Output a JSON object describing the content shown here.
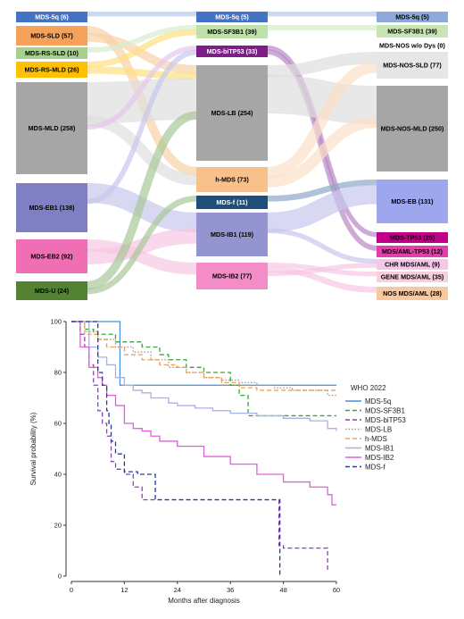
{
  "chart_data": [
    {
      "type": "sankey",
      "title": "",
      "columns": [
        {
          "nodes": [
            {
              "id": "c0n0",
              "label": "MDS-5q (6)",
              "value": 6,
              "color": "#4472c4",
              "text_color": "#ffffff"
            },
            {
              "id": "c0n1",
              "label": "MDS-SLD (57)",
              "value": 57,
              "color": "#f4a25a",
              "text_color": "#000000"
            },
            {
              "id": "c0n2",
              "label": "MDS-RS-SLD (10)",
              "value": 10,
              "color": "#a8d08d",
              "text_color": "#000000"
            },
            {
              "id": "c0n3",
              "label": "MDS-RS-MLD (26)",
              "value": 26,
              "color": "#ffc000",
              "text_color": "#000000"
            },
            {
              "id": "c0n4",
              "label": "MDS-MLD (258)",
              "value": 258,
              "color": "#a6a6a6",
              "text_color": "#000000"
            },
            {
              "id": "c0n5",
              "label": "MDS-EB1 (138)",
              "value": 138,
              "color": "#7f7fc4",
              "text_color": "#000000"
            },
            {
              "id": "c0n6",
              "label": "MDS-EB2 (92)",
              "value": 92,
              "color": "#f06eb4",
              "text_color": "#000000"
            },
            {
              "id": "c0n7",
              "label": "MDS-U (24)",
              "value": 24,
              "color": "#548235",
              "text_color": "#000000"
            }
          ]
        },
        {
          "nodes": [
            {
              "id": "c1n0",
              "label": "MDS-5q (5)",
              "value": 5,
              "color": "#4472c4",
              "text_color": "#ffffff"
            },
            {
              "id": "c1n1",
              "label": "MDS-SF3B1 (39)",
              "value": 39,
              "color": "#bfe0a8",
              "text_color": "#000000"
            },
            {
              "id": "c1n2",
              "label": "MDS-biTP53 (33)",
              "value": 33,
              "color": "#7b1e86",
              "text_color": "#ffffff"
            },
            {
              "id": "c1n3",
              "label": "MDS-LB (254)",
              "value": 254,
              "color": "#a6a6a6",
              "text_color": "#000000"
            },
            {
              "id": "c1n4",
              "label": "h-MDS (73)",
              "value": 73,
              "color": "#f8c08a",
              "text_color": "#000000"
            },
            {
              "id": "c1n5",
              "label": "MDS-f (11)",
              "value": 11,
              "color": "#1f4e79",
              "text_color": "#ffffff"
            },
            {
              "id": "c1n6",
              "label": "MDS-IB1 (119)",
              "value": 119,
              "color": "#9494d0",
              "text_color": "#000000"
            },
            {
              "id": "c1n7",
              "label": "MDS-IB2 (77)",
              "value": 77,
              "color": "#f48cc8",
              "text_color": "#000000"
            }
          ]
        },
        {
          "nodes": [
            {
              "id": "c2n0",
              "label": "MDS-5q (5)",
              "value": 5,
              "color": "#8eaadb",
              "text_color": "#000000"
            },
            {
              "id": "c2n1",
              "label": "MDS-SF3B1 (39)",
              "value": 39,
              "color": "#c8e6b4",
              "text_color": "#000000"
            },
            {
              "id": "c2n2",
              "label": "MDS-NOS w/o Dys (0)",
              "value": 0,
              "color": "#ffffff",
              "text_color": "#000000"
            },
            {
              "id": "c2n3",
              "label": "MDS-NOS-SLD (77)",
              "value": 77,
              "color": "#e6e6e6",
              "text_color": "#000000"
            },
            {
              "id": "c2n4",
              "label": "MDS-NOS-MLD (250)",
              "value": 250,
              "color": "#a6a6a6",
              "text_color": "#000000"
            },
            {
              "id": "c2n5",
              "label": "MDS-EB (131)",
              "value": 131,
              "color": "#9ea6ee",
              "text_color": "#000000"
            },
            {
              "id": "c2n6",
              "label": "MDS-TP53 (25)",
              "value": 25,
              "color": "#c00088",
              "text_color": "#000000"
            },
            {
              "id": "c2n7",
              "label": "MDS/AML-TP53 (12)",
              "value": 12,
              "color": "#e040a8",
              "text_color": "#000000"
            },
            {
              "id": "c2n8",
              "label": "CHR MDS/AML (9)",
              "value": 9,
              "color": "#f4c8e8",
              "text_color": "#000000"
            },
            {
              "id": "c2n9",
              "label": "GENE MDS/AML (35)",
              "value": 35,
              "color": "#f8d0dc",
              "text_color": "#000000"
            },
            {
              "id": "c2n10",
              "label": "NOS MDS/AML (28)",
              "value": 28,
              "color": "#f8c8a0",
              "text_color": "#000000"
            }
          ]
        }
      ],
      "links": [
        [
          "c0n0",
          "c1n0",
          "#b8c8f0"
        ],
        [
          "c0n1",
          "c1n4",
          "#f9d2a8"
        ],
        [
          "c0n1",
          "c1n3",
          "#f9d2a8"
        ],
        [
          "c0n2",
          "c1n1",
          "#d6eccc"
        ],
        [
          "c0n3",
          "c1n1",
          "#ffe080"
        ],
        [
          "c0n3",
          "c1n3",
          "#ffe080"
        ],
        [
          "c0n4",
          "c1n3",
          "#dedede"
        ],
        [
          "c0n4",
          "c1n4",
          "#dedede"
        ],
        [
          "c0n4",
          "c1n2",
          "#e6c8ee"
        ],
        [
          "c0n5",
          "c1n6",
          "#c8c8ec"
        ],
        [
          "c0n5",
          "c1n2",
          "#c8c8ec"
        ],
        [
          "c0n6",
          "c1n7",
          "#f8c8e4"
        ],
        [
          "c0n6",
          "c1n6",
          "#f8c8e4"
        ],
        [
          "c0n7",
          "c1n3",
          "#a8c898"
        ],
        [
          "c0n7",
          "c1n5",
          "#a8c898"
        ],
        [
          "c1n0",
          "c2n0",
          "#b8c8f0"
        ],
        [
          "c1n1",
          "c2n1",
          "#d6eccc"
        ],
        [
          "c1n2",
          "c2n6",
          "#b888c4"
        ],
        [
          "c1n2",
          "c2n7",
          "#b888c4"
        ],
        [
          "c1n3",
          "c2n3",
          "#dedede"
        ],
        [
          "c1n3",
          "c2n4",
          "#dedede"
        ],
        [
          "c1n4",
          "c2n3",
          "#fbe0c8"
        ],
        [
          "c1n4",
          "c2n4",
          "#fbe0c8"
        ],
        [
          "c1n5",
          "c2n5",
          "#8ea8c8"
        ],
        [
          "c1n6",
          "c2n5",
          "#c8c8ec"
        ],
        [
          "c1n6",
          "c2n8",
          "#c8c8ec"
        ],
        [
          "c1n7",
          "c2n9",
          "#f8c8e4"
        ],
        [
          "c1n7",
          "c2n10",
          "#f8c8e4"
        ],
        [
          "c1n7",
          "c2n8",
          "#f8c8e4"
        ]
      ]
    },
    {
      "type": "line",
      "subtype": "kaplan-meier step",
      "title": "",
      "xlabel": "Months after diagnosis",
      "ylabel": "Survival probability (%)",
      "xlim": [
        0,
        60
      ],
      "ylim": [
        0,
        100
      ],
      "xticks": [
        0,
        12,
        24,
        36,
        48,
        60
      ],
      "yticks": [
        0,
        20,
        40,
        60,
        80,
        100
      ],
      "legend_title": "WHO 2022",
      "legend_position": "right",
      "series": [
        {
          "name": "MDS-5q",
          "color": "#4a90d9",
          "dash": "solid",
          "x": [
            0,
            11,
            11,
            60
          ],
          "y": [
            100,
            100,
            75,
            75
          ]
        },
        {
          "name": "MDS-SF3B1",
          "color": "#3aa635",
          "dash": "dashed",
          "x": [
            0,
            3,
            5,
            7,
            10,
            14,
            16,
            20,
            22,
            26,
            30,
            36,
            38,
            40,
            45,
            60
          ],
          "y": [
            100,
            97,
            95,
            95,
            92,
            92,
            90,
            87,
            85,
            82,
            80,
            75,
            71,
            63,
            63,
            63
          ]
        },
        {
          "name": "MDS-biTP53",
          "color": "#8a3fc0",
          "dash": "dashed",
          "x": [
            0,
            2,
            3,
            4,
            5,
            6,
            7,
            8,
            9,
            10,
            12,
            14,
            16,
            19,
            38,
            47,
            48,
            57,
            58
          ],
          "y": [
            100,
            95,
            90,
            83,
            75,
            65,
            60,
            55,
            45,
            42,
            40,
            35,
            30,
            30,
            30,
            12,
            11,
            11,
            2
          ]
        },
        {
          "name": "MDS-LB",
          "color": "#9a9a9a",
          "dash": "dotted",
          "x": [
            0,
            3,
            6,
            10,
            14,
            18,
            22,
            26,
            30,
            34,
            38,
            42,
            46,
            50,
            54,
            58,
            60
          ],
          "y": [
            100,
            96,
            93,
            90,
            88,
            85,
            82,
            80,
            78,
            77,
            76,
            75,
            74,
            73,
            73,
            71,
            71
          ]
        },
        {
          "name": "h-MDS",
          "color": "#f0a050",
          "dash": "dashed",
          "x": [
            0,
            3,
            6,
            8,
            12,
            16,
            20,
            24,
            26,
            30,
            34,
            38,
            42,
            48,
            54,
            60
          ],
          "y": [
            100,
            95,
            93,
            90,
            87,
            85,
            83,
            82,
            80,
            78,
            76,
            74,
            73,
            73,
            73,
            73
          ]
        },
        {
          "name": "MDS-IB1",
          "color": "#a8b0e8",
          "dash": "solid",
          "x": [
            0,
            4,
            6,
            8,
            10,
            12,
            14,
            16,
            18,
            20,
            22,
            24,
            28,
            32,
            36,
            42,
            48,
            54,
            58,
            60
          ],
          "y": [
            100,
            90,
            86,
            83,
            78,
            75,
            73,
            72,
            70,
            70,
            68,
            67,
            66,
            65,
            64,
            63,
            62,
            61,
            58,
            57
          ]
        },
        {
          "name": "MDS-IB2",
          "color": "#e060d8",
          "dash": "solid",
          "x": [
            0,
            2,
            4,
            6,
            7,
            8,
            10,
            12,
            14,
            16,
            18,
            20,
            24,
            30,
            36,
            42,
            48,
            54,
            58,
            59,
            60
          ],
          "y": [
            100,
            90,
            82,
            78,
            75,
            71,
            67,
            60,
            58,
            57,
            55,
            53,
            51,
            47,
            44,
            40,
            37,
            35,
            32,
            28,
            28
          ]
        },
        {
          "name": "MDS-f",
          "color": "#2a3a9a",
          "dash": "dashed",
          "x": [
            0,
            6,
            7,
            8,
            8.5,
            9,
            10,
            12,
            15,
            19,
            25,
            29,
            38,
            47,
            47.2
          ],
          "y": [
            100,
            80,
            75,
            65,
            60,
            53,
            48,
            41,
            40,
            30,
            30,
            30,
            30,
            30,
            0
          ]
        }
      ]
    }
  ]
}
